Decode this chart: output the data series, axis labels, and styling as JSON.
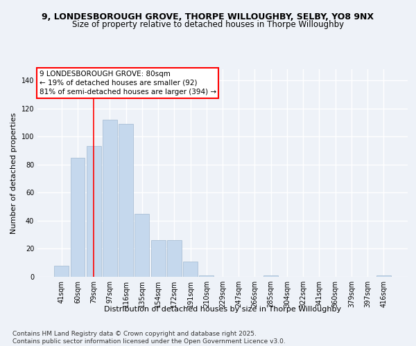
{
  "title_line1": "9, LONDESBOROUGH GROVE, THORPE WILLOUGHBY, SELBY, YO8 9NX",
  "title_line2": "Size of property relative to detached houses in Thorpe Willoughby",
  "xlabel": "Distribution of detached houses by size in Thorpe Willoughby",
  "ylabel": "Number of detached properties",
  "categories": [
    "41sqm",
    "60sqm",
    "79sqm",
    "97sqm",
    "116sqm",
    "135sqm",
    "154sqm",
    "172sqm",
    "191sqm",
    "210sqm",
    "229sqm",
    "247sqm",
    "266sqm",
    "285sqm",
    "304sqm",
    "322sqm",
    "341sqm",
    "360sqm",
    "379sqm",
    "397sqm",
    "416sqm"
  ],
  "values": [
    8,
    85,
    93,
    112,
    109,
    45,
    26,
    26,
    11,
    1,
    0,
    0,
    0,
    1,
    0,
    0,
    0,
    0,
    0,
    0,
    1
  ],
  "bar_color": "#c5d8ed",
  "bar_edge_color": "#a0b8d0",
  "vline_x_index": 2,
  "vline_color": "red",
  "annotation_text": "9 LONDESBOROUGH GROVE: 80sqm\n← 19% of detached houses are smaller (92)\n81% of semi-detached houses are larger (394) →",
  "annotation_box_color": "white",
  "annotation_box_edge_color": "red",
  "ylim": [
    0,
    148
  ],
  "yticks": [
    0,
    20,
    40,
    60,
    80,
    100,
    120,
    140
  ],
  "background_color": "#eef2f8",
  "grid_color": "white",
  "footer_text": "Contains HM Land Registry data © Crown copyright and database right 2025.\nContains public sector information licensed under the Open Government Licence v3.0.",
  "title_fontsize": 9,
  "subtitle_fontsize": 8.5,
  "axis_label_fontsize": 8,
  "tick_fontsize": 7,
  "footer_fontsize": 6.5,
  "annotation_fontsize": 7.5
}
